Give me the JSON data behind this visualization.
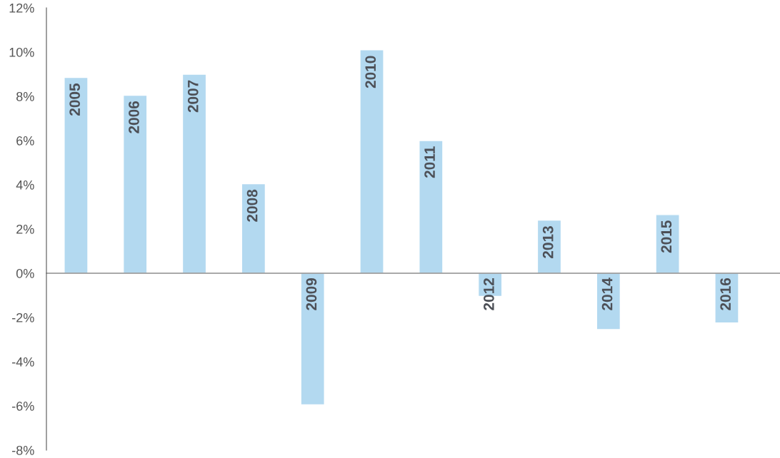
{
  "chart_data": {
    "type": "bar",
    "categories": [
      "2005",
      "2006",
      "2007",
      "2008",
      "2009",
      "2010",
      "2011",
      "2012",
      "2013",
      "2014",
      "2015",
      "2016"
    ],
    "values": [
      8.85,
      8.05,
      9.0,
      4.05,
      -5.95,
      10.1,
      6.0,
      -1.05,
      2.4,
      -2.55,
      2.65,
      -2.25
    ],
    "color": "#b3d9f0",
    "ylim": [
      -8,
      12
    ],
    "yticks": [
      {
        "value": -8,
        "label": "-8%"
      },
      {
        "value": -6,
        "label": "-6%"
      },
      {
        "value": -4,
        "label": "-4%"
      },
      {
        "value": -2,
        "label": "-2%"
      },
      {
        "value": 0,
        "label": "0%"
      },
      {
        "value": 2,
        "label": "2%"
      },
      {
        "value": 4,
        "label": "4%"
      },
      {
        "value": 6,
        "label": "6%"
      },
      {
        "value": 8,
        "label": "8%"
      },
      {
        "value": 10,
        "label": "10%"
      },
      {
        "value": 12,
        "label": "12%"
      }
    ],
    "grid": false,
    "legend": false
  }
}
